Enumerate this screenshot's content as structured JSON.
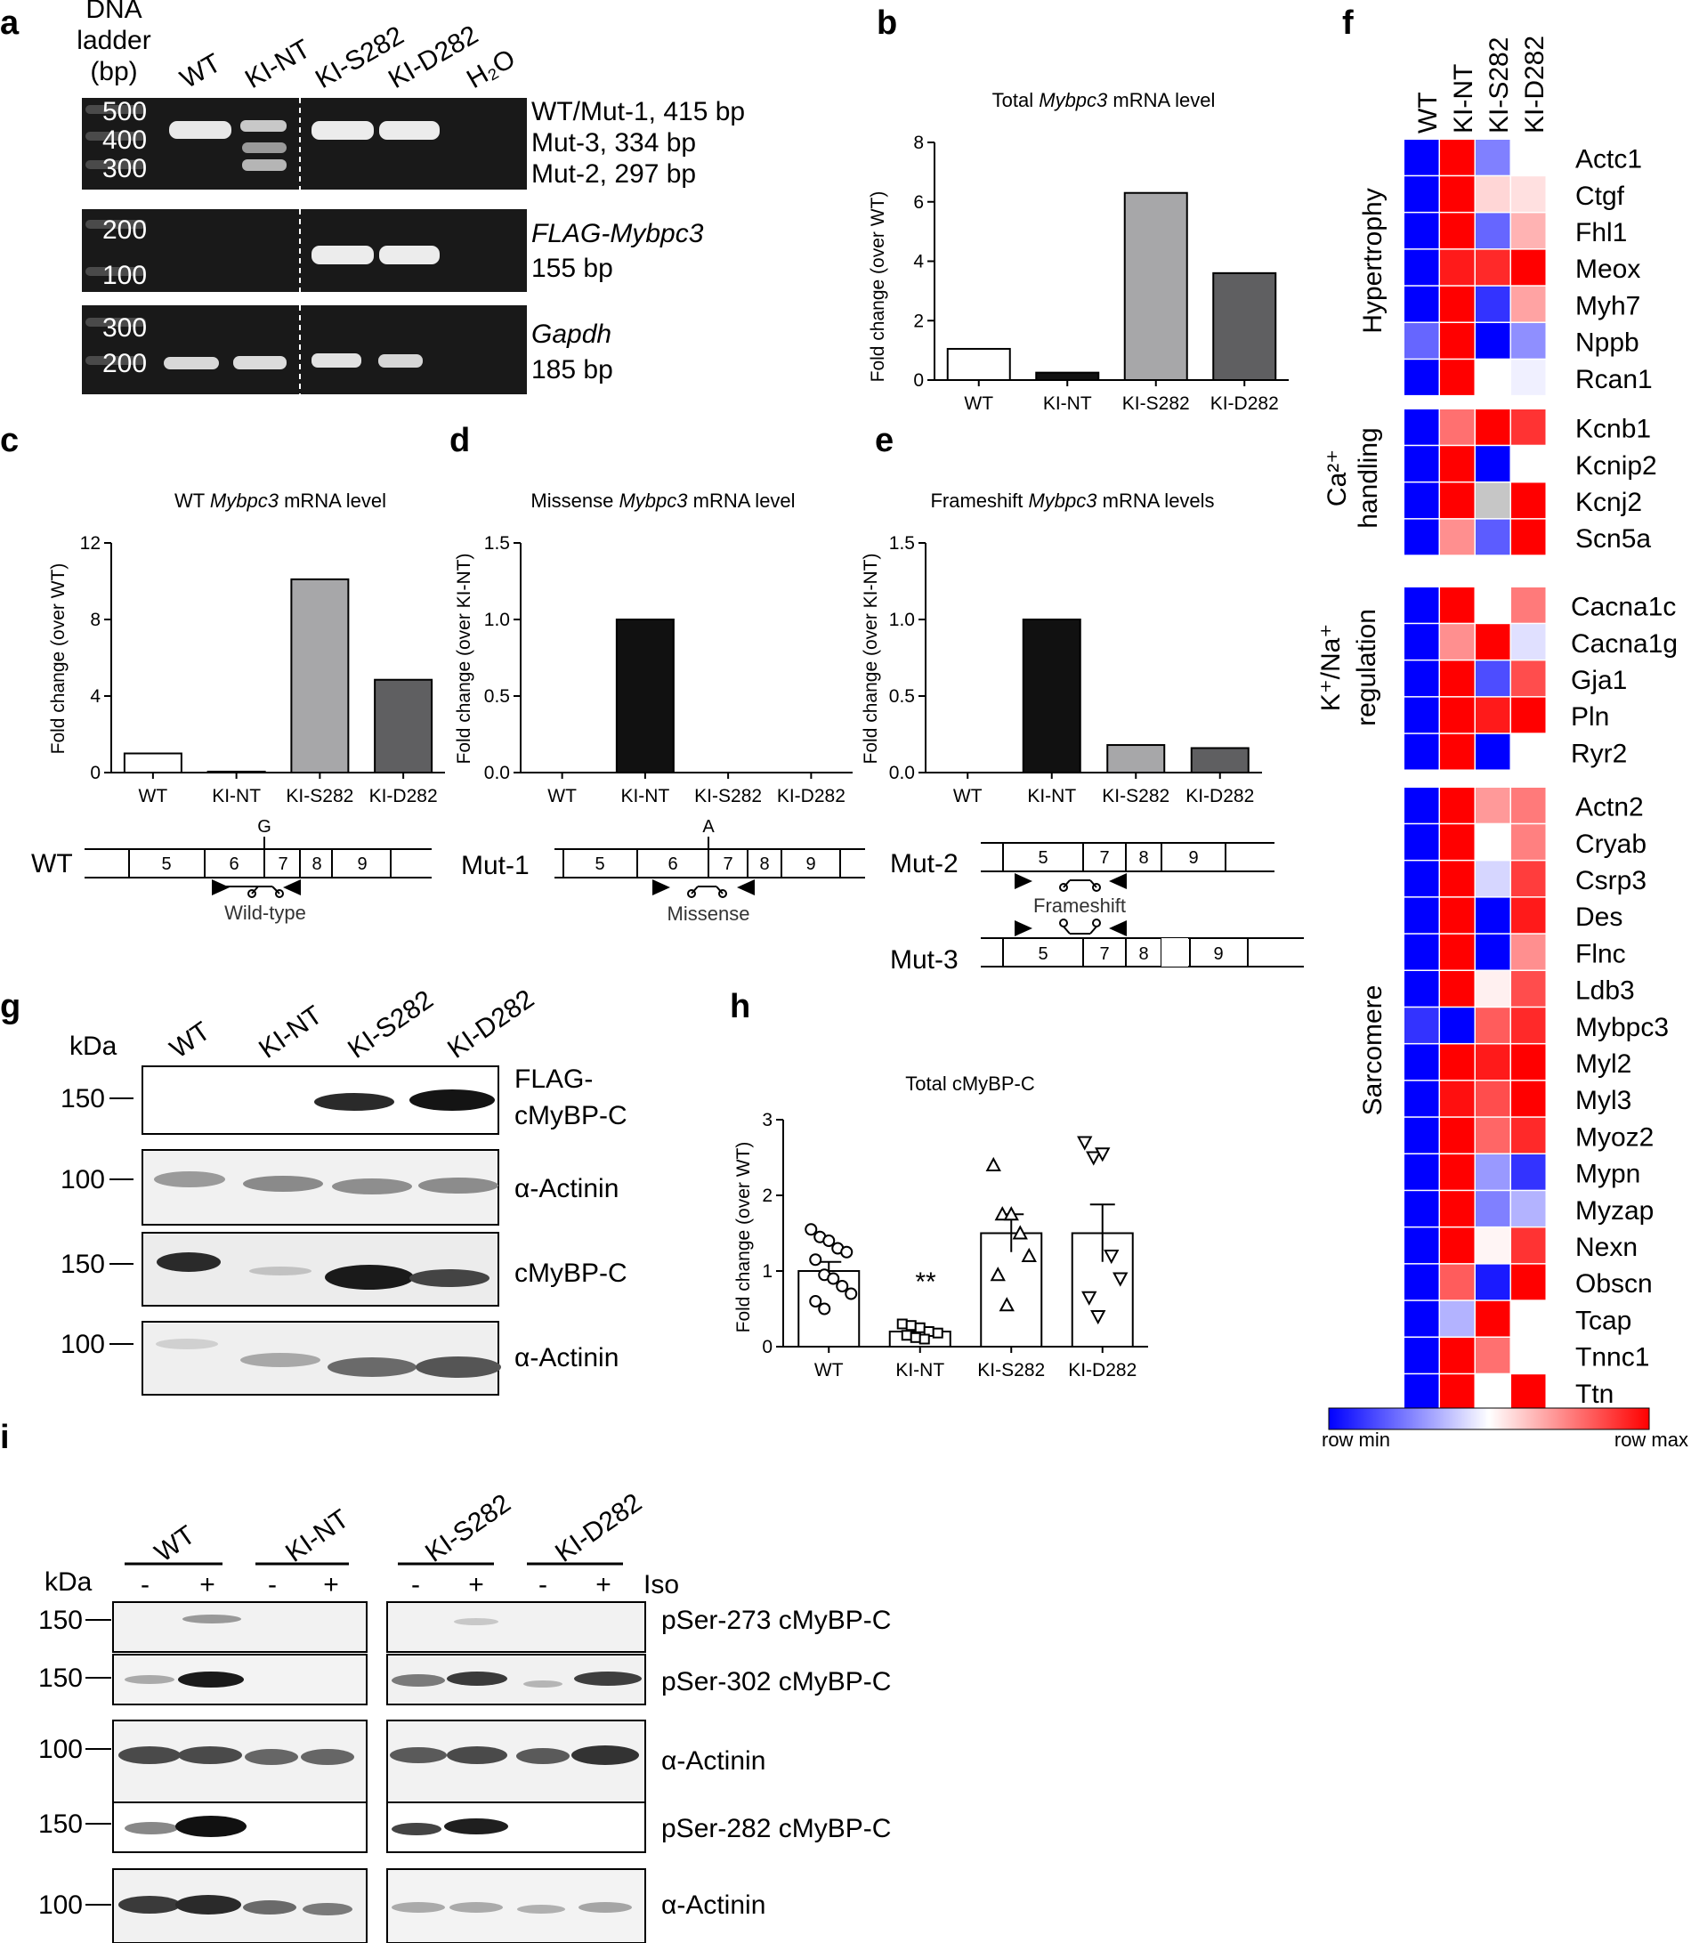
{
  "panel_labels": [
    "a",
    "b",
    "c",
    "d",
    "e",
    "f",
    "g",
    "h",
    "i"
  ],
  "panel_a": {
    "ladder_header": [
      "DNA",
      "ladder",
      "(bp)"
    ],
    "lanes": [
      "WT",
      "KI-NT",
      "KI-S282",
      "KI-D282",
      "H₂O"
    ],
    "gel1": {
      "ladder": [
        "500",
        "400",
        "300"
      ],
      "labels": [
        "WT/Mut-1, 415 bp",
        "Mut-3, 334 bp",
        "Mut-2, 297 bp"
      ]
    },
    "gel2": {
      "ladder": [
        "200",
        "100"
      ],
      "label_gene": "FLAG-Mybpc3",
      "label_size": "155 bp"
    },
    "gel3": {
      "ladder": [
        "300",
        "200"
      ],
      "label_gene": "Gapdh",
      "label_size": "185 bp"
    }
  },
  "panel_b": {
    "title_pre": "Total ",
    "title_gene": "Mybpc3",
    "title_post": " mRNA level",
    "ylabel": "Fold change (over WT)"
  },
  "panel_c": {
    "title_pre": "WT ",
    "title_gene": "Mybpc3",
    "title_post": " mRNA level",
    "ylabel": "Fold change (over WT)",
    "diagram": {
      "label": "WT",
      "exons": [
        "5",
        "6",
        "7",
        "8",
        "9"
      ],
      "base": "G",
      "caption": "Wild-type"
    }
  },
  "panel_d": {
    "title_pre": "Missense ",
    "title_gene": "Mybpc3",
    "title_post": " mRNA level",
    "ylabel": "Fold change (over KI-NT)",
    "diagram": {
      "label": "Mut-1",
      "exons": [
        "5",
        "6",
        "7",
        "8",
        "9"
      ],
      "base": "A",
      "caption": "Missense"
    }
  },
  "panel_e": {
    "title_pre": "Frameshift ",
    "title_gene": "Mybpc3",
    "title_post": " mRNA levels",
    "ylabel": "Fold change (over KI-NT)",
    "diagram": {
      "label_top": "Mut-2",
      "exons_top": [
        "5",
        "7",
        "8",
        "9"
      ],
      "caption": "Frameshift",
      "label_bottom": "Mut-3",
      "exons_bottom": [
        "5",
        "7",
        "8",
        "9"
      ]
    }
  },
  "panel_f": {
    "columns": [
      "WT",
      "KI-NT",
      "KI-S282",
      "KI-D282"
    ],
    "legend": {
      "min": "row min",
      "max": "row max"
    },
    "groups": [
      {
        "name": "Hypertrophy",
        "genes": [
          "Actc1",
          "Ctgf",
          "Fhl1",
          "Meox",
          "Myh7",
          "Nppb",
          "Rcan1"
        ],
        "values": [
          [
            0,
            1,
            0.25,
            0.5
          ],
          [
            0,
            1,
            0.58,
            0.56
          ],
          [
            0,
            1,
            0.2,
            0.65
          ],
          [
            0,
            0.95,
            0.92,
            1
          ],
          [
            0,
            1,
            0.1,
            0.68
          ],
          [
            0.2,
            1,
            0,
            0.28
          ],
          [
            0,
            1,
            0.5,
            0.47
          ]
        ]
      },
      {
        "name_top": "Ca²⁺",
        "name_bottom": "handling",
        "genes": [
          "Kcnb1",
          "Kcnip2",
          "Kcnj2",
          "Scn5a"
        ],
        "values": [
          [
            0,
            0.78,
            1,
            0.9
          ],
          [
            0,
            1,
            0,
            0.5
          ],
          [
            0,
            1,
            null,
            1
          ],
          [
            0,
            0.72,
            0.18,
            1
          ]
        ]
      },
      {
        "name_top": "K⁺/Na⁺",
        "name_bottom": "regulation",
        "genes": [
          "Cacna1c",
          "Cacna1g",
          "Gja1",
          "Pln",
          "Ryr2"
        ],
        "values": [
          [
            0,
            1,
            0.5,
            0.76
          ],
          [
            0,
            0.72,
            1,
            0.44
          ],
          [
            0,
            1,
            0.15,
            0.85
          ],
          [
            0,
            1,
            0.95,
            1
          ],
          [
            0,
            1,
            0,
            0.5
          ]
        ]
      },
      {
        "name": "Sarcomere",
        "genes": [
          "Actn2",
          "Cryab",
          "Csrp3",
          "Des",
          "Flnc",
          "Ldb3",
          "Mybpc3",
          "Myl2",
          "Myl3",
          "Myoz2",
          "Mypn",
          "Myzap",
          "Nexn",
          "Obscn",
          "Tcap",
          "Tnnc1",
          "Ttn"
        ],
        "values": [
          [
            0,
            1,
            0.7,
            0.76
          ],
          [
            0,
            1,
            0.5,
            0.75
          ],
          [
            0,
            1,
            0.42,
            0.88
          ],
          [
            0,
            1,
            0,
            0.95
          ],
          [
            0,
            1,
            0,
            0.72
          ],
          [
            0,
            1,
            0.53,
            0.85
          ],
          [
            0.1,
            0,
            0.82,
            0.92
          ],
          [
            0,
            1,
            0.95,
            1
          ],
          [
            0,
            0.97,
            0.85,
            1
          ],
          [
            0,
            1,
            0.8,
            0.92
          ],
          [
            0,
            1,
            0.3,
            0.1
          ],
          [
            0,
            1,
            0.25,
            0.35
          ],
          [
            0,
            1,
            0.52,
            0.9
          ],
          [
            0,
            0.82,
            0.05,
            1
          ],
          [
            0,
            0.35,
            1,
            0.5
          ],
          [
            0,
            1,
            0.78,
            0.5
          ],
          [
            0,
            1,
            0.5,
            1
          ]
        ]
      }
    ]
  },
  "panel_g": {
    "kda": "kDa",
    "lanes": [
      "WT",
      "KI-NT",
      "KI-S282",
      "KI-D282"
    ],
    "blots": [
      {
        "marker": "150",
        "label": [
          "FLAG-",
          "cMyBP-C"
        ]
      },
      {
        "marker": "100",
        "label": [
          "α-Actinin"
        ]
      },
      {
        "marker": "150",
        "label": [
          "cMyBP-C"
        ]
      },
      {
        "marker": "100",
        "label": [
          "α-Actinin"
        ]
      }
    ]
  },
  "panel_h": {
    "title": "Total cMyBP-C",
    "ylabel": "Fold change (over WT)",
    "significance": "**"
  },
  "panel_i": {
    "kda": "kDa",
    "groups": [
      "WT",
      "KI-NT",
      "KI-S282",
      "KI-D282"
    ],
    "treatment": {
      "minus": "-",
      "plus": "+",
      "label": "Iso"
    },
    "blots": [
      {
        "marker": "150",
        "label": "pSer-273 cMyBP-C"
      },
      {
        "marker": "150",
        "label": "pSer-302 cMyBP-C"
      },
      {
        "marker": "100",
        "label": "α-Actinin"
      },
      {
        "marker": "150",
        "label": "pSer-282 cMyBP-C"
      },
      {
        "marker": "100",
        "label": "α-Actinin"
      }
    ]
  },
  "chart_data": [
    {
      "panel": "b",
      "type": "bar",
      "categories": [
        "WT",
        "KI-NT",
        "KI-S282",
        "KI-D282"
      ],
      "values": [
        1.05,
        0.25,
        6.3,
        3.6
      ],
      "ylim": [
        0,
        8
      ],
      "yticks": [
        0,
        2,
        4,
        6,
        8
      ],
      "colors": [
        "#ffffff",
        "#111111",
        "#a7a7a9",
        "#5f5f61"
      ]
    },
    {
      "panel": "c",
      "type": "bar",
      "categories": [
        "WT",
        "KI-NT",
        "KI-S282",
        "KI-D282"
      ],
      "values": [
        1.0,
        0.05,
        10.1,
        4.85
      ],
      "ylim": [
        0,
        12
      ],
      "yticks": [
        0,
        4,
        8,
        12
      ],
      "colors": [
        "#ffffff",
        "#111111",
        "#a7a7a9",
        "#5f5f61"
      ]
    },
    {
      "panel": "d",
      "type": "bar",
      "categories": [
        "WT",
        "KI-NT",
        "KI-S282",
        "KI-D282"
      ],
      "values": [
        0,
        1.0,
        0,
        0
      ],
      "ylim": [
        0,
        1.5
      ],
      "yticks": [
        0.0,
        0.5,
        1.0,
        1.5
      ],
      "colors": [
        "#ffffff",
        "#111111",
        "#a7a7a9",
        "#5f5f61"
      ]
    },
    {
      "panel": "e",
      "type": "bar",
      "categories": [
        "WT",
        "KI-NT",
        "KI-S282",
        "KI-D282"
      ],
      "values": [
        0,
        1.0,
        0.18,
        0.16
      ],
      "ylim": [
        0,
        1.5
      ],
      "yticks": [
        0.0,
        0.5,
        1.0,
        1.5
      ],
      "colors": [
        "#ffffff",
        "#111111",
        "#a7a7a9",
        "#5f5f61"
      ]
    },
    {
      "panel": "h",
      "type": "scatter",
      "categories": [
        "WT",
        "KI-NT",
        "KI-S282",
        "KI-D282"
      ],
      "means": [
        1.0,
        0.2,
        1.5,
        1.5
      ],
      "sem": [
        0.12,
        0.03,
        0.25,
        0.38
      ],
      "markers": [
        "circle",
        "square",
        "triangle-up",
        "triangle-down"
      ],
      "points": [
        [
          1.55,
          1.45,
          1.4,
          1.3,
          1.25,
          1.15,
          0.95,
          0.9,
          0.8,
          0.7,
          0.6,
          0.5
        ],
        [
          0.3,
          0.28,
          0.25,
          0.2,
          0.18,
          0.15,
          0.12,
          0.1
        ],
        [
          2.4,
          1.75,
          1.75,
          1.5,
          1.2,
          0.95,
          0.55
        ],
        [
          2.7,
          2.5,
          2.55,
          1.2,
          0.9,
          0.65,
          0.4
        ]
      ],
      "ylim": [
        0,
        3
      ],
      "yticks": [
        0,
        1,
        2,
        3
      ]
    }
  ]
}
